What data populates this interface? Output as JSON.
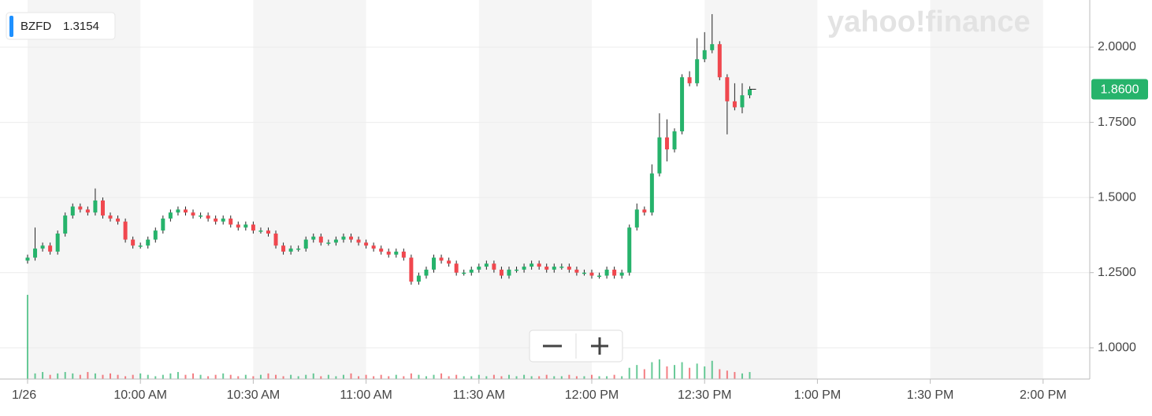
{
  "chart_data": {
    "type": "candlestick",
    "symbol": "BZFD",
    "legend_value": 1.3154,
    "watermark": "yahoo!finance",
    "current_price": {
      "value": 1.86,
      "label": "1.8600"
    },
    "up_color": "#26b36b",
    "down_color": "#f0474e",
    "x": [
      0,
      2,
      4,
      6,
      8,
      10,
      12,
      14,
      16,
      18,
      20,
      22,
      24,
      26,
      28,
      30,
      32,
      34,
      36,
      38,
      40,
      42,
      44,
      46,
      48,
      50,
      52,
      54,
      56,
      58,
      60,
      62,
      64,
      66,
      68,
      70,
      72,
      74,
      76,
      78,
      80,
      82,
      84,
      86,
      88,
      90,
      92,
      94,
      96,
      98,
      100,
      102,
      104,
      106,
      108,
      110,
      112,
      114,
      116,
      118,
      120,
      122,
      124,
      126,
      128,
      130,
      132,
      134,
      136,
      138,
      140,
      142,
      144,
      146,
      148,
      150,
      152,
      154,
      156,
      158,
      160,
      162,
      164,
      166,
      168,
      170,
      172,
      174,
      176,
      178,
      180,
      182,
      184,
      186,
      188,
      190,
      192
    ],
    "open": [
      1.29,
      1.3,
      1.33,
      1.34,
      1.32,
      1.38,
      1.44,
      1.47,
      1.46,
      1.45,
      1.49,
      1.44,
      1.43,
      1.42,
      1.36,
      1.34,
      1.34,
      1.36,
      1.39,
      1.43,
      1.45,
      1.46,
      1.45,
      1.44,
      1.44,
      1.43,
      1.42,
      1.43,
      1.41,
      1.4,
      1.41,
      1.39,
      1.39,
      1.38,
      1.34,
      1.32,
      1.33,
      1.33,
      1.36,
      1.37,
      1.35,
      1.35,
      1.36,
      1.37,
      1.36,
      1.35,
      1.34,
      1.33,
      1.32,
      1.31,
      1.32,
      1.3,
      1.22,
      1.24,
      1.26,
      1.3,
      1.29,
      1.28,
      1.25,
      1.25,
      1.26,
      1.27,
      1.28,
      1.26,
      1.24,
      1.26,
      1.26,
      1.27,
      1.28,
      1.27,
      1.26,
      1.27,
      1.27,
      1.26,
      1.25,
      1.25,
      1.24,
      1.24,
      1.26,
      1.24,
      1.25,
      1.4,
      1.46,
      1.45,
      1.58,
      1.7,
      1.66,
      1.72,
      1.9,
      1.88,
      1.96,
      1.99,
      2.01,
      1.9,
      1.82,
      1.8,
      1.84
    ],
    "high": [
      1.31,
      1.4,
      1.35,
      1.35,
      1.39,
      1.45,
      1.48,
      1.48,
      1.47,
      1.53,
      1.5,
      1.45,
      1.44,
      1.43,
      1.37,
      1.35,
      1.37,
      1.4,
      1.44,
      1.46,
      1.47,
      1.47,
      1.46,
      1.45,
      1.45,
      1.44,
      1.44,
      1.44,
      1.42,
      1.42,
      1.42,
      1.4,
      1.4,
      1.39,
      1.35,
      1.34,
      1.34,
      1.37,
      1.38,
      1.38,
      1.36,
      1.37,
      1.38,
      1.38,
      1.37,
      1.36,
      1.35,
      1.34,
      1.33,
      1.33,
      1.33,
      1.31,
      1.25,
      1.27,
      1.31,
      1.31,
      1.3,
      1.29,
      1.26,
      1.27,
      1.28,
      1.29,
      1.29,
      1.27,
      1.27,
      1.27,
      1.28,
      1.29,
      1.29,
      1.28,
      1.28,
      1.28,
      1.28,
      1.27,
      1.26,
      1.26,
      1.25,
      1.27,
      1.27,
      1.26,
      1.41,
      1.48,
      1.47,
      1.61,
      1.78,
      1.76,
      1.73,
      1.91,
      1.92,
      2.03,
      2.05,
      2.11,
      2.02,
      1.91,
      1.88,
      1.88,
      1.87
    ],
    "low": [
      1.28,
      1.29,
      1.32,
      1.31,
      1.31,
      1.37,
      1.43,
      1.45,
      1.44,
      1.44,
      1.43,
      1.42,
      1.41,
      1.35,
      1.33,
      1.33,
      1.33,
      1.35,
      1.38,
      1.42,
      1.44,
      1.44,
      1.43,
      1.43,
      1.42,
      1.41,
      1.41,
      1.4,
      1.39,
      1.39,
      1.38,
      1.38,
      1.37,
      1.33,
      1.31,
      1.31,
      1.32,
      1.32,
      1.35,
      1.34,
      1.34,
      1.34,
      1.35,
      1.35,
      1.34,
      1.33,
      1.32,
      1.31,
      1.3,
      1.3,
      1.29,
      1.21,
      1.21,
      1.23,
      1.25,
      1.28,
      1.27,
      1.24,
      1.24,
      1.24,
      1.25,
      1.26,
      1.25,
      1.23,
      1.23,
      1.25,
      1.25,
      1.26,
      1.26,
      1.25,
      1.25,
      1.26,
      1.25,
      1.24,
      1.24,
      1.23,
      1.23,
      1.23,
      1.23,
      1.23,
      1.24,
      1.39,
      1.44,
      1.44,
      1.57,
      1.62,
      1.65,
      1.71,
      1.87,
      1.87,
      1.95,
      1.98,
      1.89,
      1.71,
      1.79,
      1.78,
      1.83
    ],
    "close": [
      1.3,
      1.33,
      1.34,
      1.32,
      1.38,
      1.44,
      1.47,
      1.46,
      1.45,
      1.49,
      1.44,
      1.43,
      1.42,
      1.36,
      1.34,
      1.34,
      1.36,
      1.39,
      1.43,
      1.45,
      1.46,
      1.45,
      1.44,
      1.44,
      1.43,
      1.42,
      1.43,
      1.41,
      1.4,
      1.41,
      1.39,
      1.39,
      1.38,
      1.34,
      1.32,
      1.33,
      1.33,
      1.36,
      1.37,
      1.35,
      1.35,
      1.36,
      1.37,
      1.36,
      1.35,
      1.34,
      1.33,
      1.32,
      1.31,
      1.32,
      1.3,
      1.22,
      1.24,
      1.26,
      1.3,
      1.29,
      1.28,
      1.25,
      1.25,
      1.26,
      1.27,
      1.28,
      1.26,
      1.24,
      1.26,
      1.26,
      1.27,
      1.28,
      1.27,
      1.26,
      1.27,
      1.27,
      1.26,
      1.25,
      1.25,
      1.24,
      1.24,
      1.26,
      1.24,
      1.25,
      1.4,
      1.46,
      1.45,
      1.58,
      1.7,
      1.66,
      1.72,
      1.9,
      1.88,
      1.96,
      1.99,
      2.01,
      1.9,
      1.82,
      1.8,
      1.84,
      1.86
    ],
    "volume": [
      600000,
      40000,
      50000,
      30000,
      40000,
      50000,
      40000,
      30000,
      50000,
      40000,
      30000,
      40000,
      30000,
      20000,
      30000,
      40000,
      30000,
      20000,
      30000,
      40000,
      50000,
      30000,
      40000,
      30000,
      20000,
      30000,
      40000,
      30000,
      20000,
      30000,
      20000,
      30000,
      40000,
      30000,
      20000,
      30000,
      20000,
      30000,
      40000,
      20000,
      30000,
      20000,
      30000,
      40000,
      20000,
      30000,
      20000,
      30000,
      20000,
      30000,
      20000,
      40000,
      30000,
      20000,
      30000,
      40000,
      20000,
      30000,
      20000,
      20000,
      30000,
      20000,
      30000,
      20000,
      30000,
      20000,
      30000,
      20000,
      20000,
      30000,
      20000,
      20000,
      30000,
      20000,
      20000,
      30000,
      20000,
      20000,
      30000,
      20000,
      80000,
      100000,
      70000,
      120000,
      140000,
      90000,
      100000,
      120000,
      80000,
      110000,
      90000,
      130000,
      70000,
      60000,
      50000,
      40000,
      50000
    ],
    "vlim": [
      0,
      2700000
    ],
    "xlim": [
      -7.33,
      282.4
    ],
    "xticks": [
      {
        "value": 0,
        "label": "1/26"
      },
      {
        "value": 30,
        "label": "10:00 AM"
      },
      {
        "value": 60,
        "label": "10:30 AM"
      },
      {
        "value": 90,
        "label": "11:00 AM"
      },
      {
        "value": 120,
        "label": "11:30 AM"
      },
      {
        "value": 150,
        "label": "12:00 PM"
      },
      {
        "value": 180,
        "label": "12:30 PM"
      },
      {
        "value": 210,
        "label": "1:00 PM"
      },
      {
        "value": 240,
        "label": "1:30 PM"
      },
      {
        "value": 270,
        "label": "2:00 PM"
      }
    ],
    "ylim": [
      0.896,
      2.157
    ],
    "yticks": [
      {
        "value": 1,
        "label": "1.0000"
      },
      {
        "value": 1.25,
        "label": "1.2500"
      },
      {
        "value": 1.5,
        "label": "1.5000"
      },
      {
        "value": 1.75,
        "label": "1.7500"
      },
      {
        "value": 2,
        "label": "2.0000"
      }
    ],
    "grid": true
  }
}
